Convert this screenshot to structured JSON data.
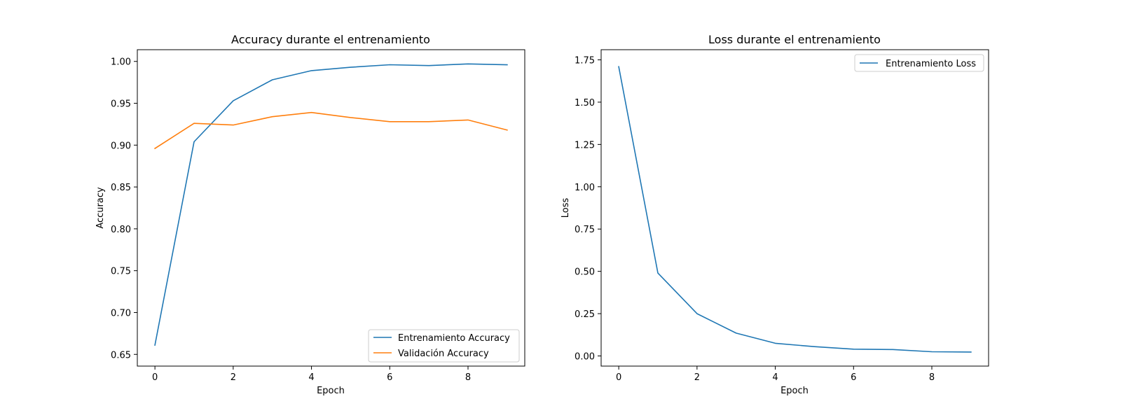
{
  "chart_data": [
    {
      "type": "line",
      "title": "Accuracy durante el entrenamiento",
      "xlabel": "Epoch",
      "ylabel": "Accuracy",
      "x": [
        0,
        1,
        2,
        3,
        4,
        5,
        6,
        7,
        8,
        9
      ],
      "xlim": [
        -0.45,
        9.45
      ],
      "ylim": [
        0.636,
        1.014
      ],
      "xticks": [
        "0",
        "2",
        "4",
        "6",
        "8"
      ],
      "yticks": [
        "0.65",
        "0.70",
        "0.75",
        "0.80",
        "0.85",
        "0.90",
        "0.95",
        "1.00"
      ],
      "legend_position": "lower-right",
      "grid": false,
      "series": [
        {
          "name": "Entrenamiento Accuracy",
          "color": "#1f77b4",
          "values": [
            0.661,
            0.904,
            0.953,
            0.978,
            0.989,
            0.993,
            0.996,
            0.995,
            0.997,
            0.996
          ]
        },
        {
          "name": "Validación Accuracy",
          "color": "#ff7f0e",
          "values": [
            0.896,
            0.926,
            0.924,
            0.934,
            0.939,
            0.933,
            0.928,
            0.928,
            0.93,
            0.918
          ]
        }
      ]
    },
    {
      "type": "line",
      "title": "Loss durante el entrenamiento",
      "xlabel": "Epoch",
      "ylabel": "Loss",
      "x": [
        0,
        1,
        2,
        3,
        4,
        5,
        6,
        7,
        8,
        9
      ],
      "xlim": [
        -0.45,
        9.45
      ],
      "ylim": [
        -0.06,
        1.81
      ],
      "xticks": [
        "0",
        "2",
        "4",
        "6",
        "8"
      ],
      "yticks": [
        "0.00",
        "0.25",
        "0.50",
        "0.75",
        "1.00",
        "1.25",
        "1.50",
        "1.75"
      ],
      "legend_position": "upper-right",
      "grid": false,
      "series": [
        {
          "name": "Entrenamiento Loss",
          "color": "#1f77b4",
          "values": [
            1.71,
            0.49,
            0.25,
            0.135,
            0.075,
            0.055,
            0.04,
            0.038,
            0.025,
            0.023
          ]
        }
      ]
    }
  ]
}
